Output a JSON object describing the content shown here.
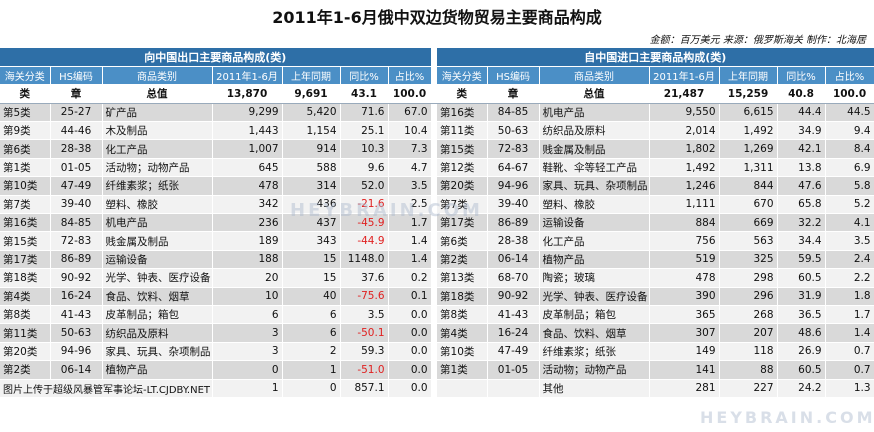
{
  "title": "2011年1-6月俄中双边货物贸易主要商品构成",
  "source": "金额：百万美元 来源：俄罗斯海关 制作：北海居",
  "export_section": "向中国出口主要商品构成(类)",
  "import_section": "自中国进口主要商品构成(类)",
  "headers": [
    "海关分类",
    "HS编码",
    "商品类别",
    "2011年1-6月",
    "上年同期",
    "同比%",
    "占比%"
  ],
  "unit_row": {
    "export": [
      "类",
      "章",
      "总值",
      "13,870",
      "9,691",
      "43.1",
      "100.0"
    ],
    "import": [
      "类",
      "章",
      "总值",
      "21,487",
      "15,259",
      "40.8",
      "100.0"
    ]
  },
  "export_rows": [
    [
      "第5类",
      "25-27",
      "矿产品",
      "9,299",
      "5,420",
      "71.6",
      "67.0"
    ],
    [
      "第9类",
      "44-46",
      "木及制品",
      "1,443",
      "1,154",
      "25.1",
      "10.4"
    ],
    [
      "第6类",
      "28-38",
      "化工产品",
      "1,007",
      "914",
      "10.3",
      "7.3"
    ],
    [
      "第1类",
      "01-05",
      "活动物；动物产品",
      "645",
      "588",
      "9.6",
      "4.7"
    ],
    [
      "第10类",
      "47-49",
      "纤维素浆；纸张",
      "478",
      "314",
      "52.0",
      "3.5"
    ],
    [
      "第7类",
      "39-40",
      "塑料、橡胶",
      "342",
      "436",
      "-21.6",
      "2.5"
    ],
    [
      "第16类",
      "84-85",
      "机电产品",
      "236",
      "437",
      "-45.9",
      "1.7"
    ],
    [
      "第15类",
      "72-83",
      "贱金属及制品",
      "189",
      "343",
      "-44.9",
      "1.4"
    ],
    [
      "第17类",
      "86-89",
      "运输设备",
      "188",
      "15",
      "1148.0",
      "1.4"
    ],
    [
      "第18类",
      "90-92",
      "光学、钟表、医疗设备",
      "20",
      "15",
      "37.6",
      "0.2"
    ],
    [
      "第4类",
      "16-24",
      "食品、饮料、烟草",
      "10",
      "40",
      "-75.6",
      "0.1"
    ],
    [
      "第8类",
      "41-43",
      "皮革制品；箱包",
      "6",
      "6",
      "3.5",
      "0.0"
    ],
    [
      "第11类",
      "50-63",
      "纺织品及原料",
      "3",
      "6",
      "-50.1",
      "0.0"
    ],
    [
      "第20类",
      "94-96",
      "家具、玩具、杂项制品",
      "3",
      "2",
      "59.3",
      "0.0"
    ],
    [
      "第2类",
      "06-14",
      "植物产品",
      "0",
      "1",
      "-51.0",
      "0.0"
    ],
    [
      "图片上传于超级风暴管军事论坛-LT.CJDBY.NET",
      "",
      "",
      "1",
      "0",
      "857.1",
      "0.0"
    ]
  ],
  "import_rows": [
    [
      "第16类",
      "84-85",
      "机电产品",
      "9,550",
      "6,615",
      "44.4",
      "44.5"
    ],
    [
      "第11类",
      "50-63",
      "纺织品及原料",
      "2,014",
      "1,492",
      "34.9",
      "9.4"
    ],
    [
      "第15类",
      "72-83",
      "贱金属及制品",
      "1,802",
      "1,269",
      "42.1",
      "8.4"
    ],
    [
      "第12类",
      "64-67",
      "鞋靴、伞等轻工产品",
      "1,492",
      "1,311",
      "13.8",
      "6.9"
    ],
    [
      "第20类",
      "94-96",
      "家具、玩具、杂项制品",
      "1,246",
      "844",
      "47.6",
      "5.8"
    ],
    [
      "第7类",
      "39-40",
      "塑料、橡胶",
      "1,111",
      "670",
      "65.8",
      "5.2"
    ],
    [
      "第17类",
      "86-89",
      "运输设备",
      "884",
      "669",
      "32.2",
      "4.1"
    ],
    [
      "第6类",
      "28-38",
      "化工产品",
      "756",
      "563",
      "34.4",
      "3.5"
    ],
    [
      "第2类",
      "06-14",
      "植物产品",
      "519",
      "325",
      "59.5",
      "2.4"
    ],
    [
      "第13类",
      "68-70",
      "陶瓷；玻璃",
      "478",
      "298",
      "60.5",
      "2.2"
    ],
    [
      "第18类",
      "90-92",
      "光学、钟表、医疗设备",
      "390",
      "296",
      "31.9",
      "1.8"
    ],
    [
      "第8类",
      "41-43",
      "皮革制品；箱包",
      "365",
      "268",
      "36.5",
      "1.7"
    ],
    [
      "第4类",
      "16-24",
      "食品、饮料、烟草",
      "307",
      "207",
      "48.6",
      "1.4"
    ],
    [
      "第10类",
      "47-49",
      "纤维素浆；纸张",
      "149",
      "118",
      "26.9",
      "0.7"
    ],
    [
      "第1类",
      "01-05",
      "活动物；动物产品",
      "141",
      "88",
      "60.5",
      "0.7"
    ],
    [
      "",
      "",
      "其他",
      "281",
      "227",
      "24.2",
      "1.3"
    ]
  ],
  "watermark": "HEYBRAIN.COM",
  "watermark2": "HEYBRAIN.COM"
}
